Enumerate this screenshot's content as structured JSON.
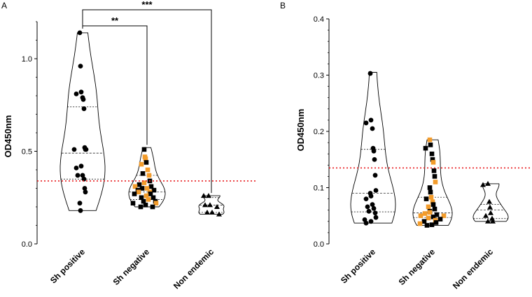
{
  "chart_data": [
    {
      "type": "violin",
      "panel": "A",
      "ylabel": "OD450nm",
      "ylim": [
        0,
        1.2
      ],
      "yticks": [
        0.0,
        0.5,
        1.0
      ],
      "ytick_labels": [
        "0.0",
        "0.5",
        "1.0"
      ],
      "categories": [
        "Sh positive",
        "Sh negative",
        "Non endemic"
      ],
      "cutoff": 0.34,
      "cutoff_color": "#e8191c",
      "groups": [
        {
          "name": "Sh positive",
          "marker": "circle",
          "range": [
            0.18,
            1.14
          ],
          "quartiles": [
            0.35,
            0.49,
            0.74
          ],
          "points": [
            {
              "v": 1.14,
              "c": "#000000"
            },
            {
              "v": 0.96,
              "c": "#000000"
            },
            {
              "v": 0.82,
              "c": "#000000"
            },
            {
              "v": 0.81,
              "c": "#000000"
            },
            {
              "v": 0.79,
              "c": "#000000"
            },
            {
              "v": 0.78,
              "c": "#000000"
            },
            {
              "v": 0.73,
              "c": "#000000"
            },
            {
              "v": 0.52,
              "c": "#000000"
            },
            {
              "v": 0.51,
              "c": "#000000"
            },
            {
              "v": 0.51,
              "c": "#000000"
            },
            {
              "v": 0.51,
              "c": "#000000"
            },
            {
              "v": 0.42,
              "c": "#000000"
            },
            {
              "v": 0.41,
              "c": "#000000"
            },
            {
              "v": 0.37,
              "c": "#000000"
            },
            {
              "v": 0.37,
              "c": "#000000"
            },
            {
              "v": 0.35,
              "c": "#000000"
            },
            {
              "v": 0.3,
              "c": "#000000"
            },
            {
              "v": 0.28,
              "c": "#000000"
            },
            {
              "v": 0.22,
              "c": "#000000"
            },
            {
              "v": 0.18,
              "c": "#000000"
            }
          ]
        },
        {
          "name": "Sh negative",
          "marker": "square",
          "range": [
            0.2,
            0.52
          ],
          "quartiles": [
            0.24,
            0.28,
            0.37
          ],
          "points": [
            {
              "v": 0.51,
              "c": "#000000"
            },
            {
              "v": 0.47,
              "c": "#f39c2b"
            },
            {
              "v": 0.46,
              "c": "#f39c2b"
            },
            {
              "v": 0.44,
              "c": "#000000"
            },
            {
              "v": 0.43,
              "c": "#f39c2b"
            },
            {
              "v": 0.4,
              "c": "#f39c2b"
            },
            {
              "v": 0.38,
              "c": "#000000"
            },
            {
              "v": 0.37,
              "c": "#f39c2b"
            },
            {
              "v": 0.34,
              "c": "#000000"
            },
            {
              "v": 0.33,
              "c": "#f39c2b"
            },
            {
              "v": 0.32,
              "c": "#000000"
            },
            {
              "v": 0.31,
              "c": "#000000"
            },
            {
              "v": 0.31,
              "c": "#f39c2b"
            },
            {
              "v": 0.3,
              "c": "#f39c2b"
            },
            {
              "v": 0.3,
              "c": "#000000"
            },
            {
              "v": 0.29,
              "c": "#000000"
            },
            {
              "v": 0.29,
              "c": "#000000"
            },
            {
              "v": 0.28,
              "c": "#f39c2b"
            },
            {
              "v": 0.28,
              "c": "#f39c2b"
            },
            {
              "v": 0.27,
              "c": "#000000"
            },
            {
              "v": 0.27,
              "c": "#000000"
            },
            {
              "v": 0.26,
              "c": "#f39c2b"
            },
            {
              "v": 0.25,
              "c": "#000000"
            },
            {
              "v": 0.25,
              "c": "#000000"
            },
            {
              "v": 0.24,
              "c": "#f39c2b"
            },
            {
              "v": 0.23,
              "c": "#000000"
            },
            {
              "v": 0.23,
              "c": "#000000"
            },
            {
              "v": 0.22,
              "c": "#000000"
            },
            {
              "v": 0.22,
              "c": "#f39c2b"
            },
            {
              "v": 0.21,
              "c": "#000000"
            },
            {
              "v": 0.2,
              "c": "#000000"
            },
            {
              "v": 0.2,
              "c": "#000000"
            }
          ]
        },
        {
          "name": "Non endemic",
          "marker": "triangle",
          "range": [
            0.16,
            0.26
          ],
          "quartiles": [
            0.17,
            0.21,
            0.25
          ],
          "points": [
            {
              "v": 0.26,
              "c": "#000000"
            },
            {
              "v": 0.26,
              "c": "#000000"
            },
            {
              "v": 0.21,
              "c": "#000000"
            },
            {
              "v": 0.21,
              "c": "#000000"
            },
            {
              "v": 0.2,
              "c": "#000000"
            },
            {
              "v": 0.17,
              "c": "#000000"
            },
            {
              "v": 0.17,
              "c": "#000000"
            },
            {
              "v": 0.16,
              "c": "#000000"
            }
          ]
        }
      ],
      "comparisons": [
        {
          "from": "Sh positive",
          "to": "Sh negative",
          "label": "**"
        },
        {
          "from": "Sh positive",
          "to": "Non endemic",
          "label": "***"
        }
      ]
    },
    {
      "type": "violin",
      "panel": "B",
      "ylabel": "OD450nm",
      "ylim": [
        0,
        0.4
      ],
      "yticks": [
        0.0,
        0.1,
        0.2,
        0.3,
        0.4
      ],
      "ytick_labels": [
        "0.0",
        "0.1",
        "0.2",
        "0.3",
        "0.4"
      ],
      "categories": [
        "Sh positive",
        "Sh negative",
        "Non endemic"
      ],
      "cutoff": 0.135,
      "cutoff_color": "#e8191c",
      "groups": [
        {
          "name": "Sh positive",
          "marker": "circle",
          "range": [
            0.037,
            0.305
          ],
          "quartiles": [
            0.057,
            0.09,
            0.168
          ],
          "points": [
            {
              "v": 0.303,
              "c": "#000000"
            },
            {
              "v": 0.22,
              "c": "#000000"
            },
            {
              "v": 0.215,
              "c": "#000000"
            },
            {
              "v": 0.205,
              "c": "#000000"
            },
            {
              "v": 0.17,
              "c": "#000000"
            },
            {
              "v": 0.165,
              "c": "#000000"
            },
            {
              "v": 0.15,
              "c": "#000000"
            },
            {
              "v": 0.122,
              "c": "#000000"
            },
            {
              "v": 0.095,
              "c": "#000000"
            },
            {
              "v": 0.09,
              "c": "#000000"
            },
            {
              "v": 0.085,
              "c": "#000000"
            },
            {
              "v": 0.08,
              "c": "#000000"
            },
            {
              "v": 0.07,
              "c": "#000000"
            },
            {
              "v": 0.066,
              "c": "#000000"
            },
            {
              "v": 0.063,
              "c": "#000000"
            },
            {
              "v": 0.058,
              "c": "#000000"
            },
            {
              "v": 0.055,
              "c": "#000000"
            },
            {
              "v": 0.047,
              "c": "#000000"
            },
            {
              "v": 0.043,
              "c": "#000000"
            },
            {
              "v": 0.04,
              "c": "#000000"
            },
            {
              "v": 0.037,
              "c": "#000000"
            }
          ]
        },
        {
          "name": "Sh negative",
          "marker": "square",
          "range": [
            0.033,
            0.185
          ],
          "quartiles": [
            0.047,
            0.055,
            0.083
          ],
          "points": [
            {
              "v": 0.185,
              "c": "#f39c2b"
            },
            {
              "v": 0.176,
              "c": "#000000"
            },
            {
              "v": 0.17,
              "c": "#000000"
            },
            {
              "v": 0.16,
              "c": "#000000"
            },
            {
              "v": 0.15,
              "c": "#000000"
            },
            {
              "v": 0.145,
              "c": "#f39c2b"
            },
            {
              "v": 0.13,
              "c": "#000000"
            },
            {
              "v": 0.12,
              "c": "#000000"
            },
            {
              "v": 0.11,
              "c": "#f39c2b"
            },
            {
              "v": 0.1,
              "c": "#000000"
            },
            {
              "v": 0.092,
              "c": "#000000"
            },
            {
              "v": 0.083,
              "c": "#f39c2b"
            },
            {
              "v": 0.08,
              "c": "#000000"
            },
            {
              "v": 0.075,
              "c": "#f39c2b"
            },
            {
              "v": 0.07,
              "c": "#000000"
            },
            {
              "v": 0.066,
              "c": "#f39c2b"
            },
            {
              "v": 0.062,
              "c": "#000000"
            },
            {
              "v": 0.058,
              "c": "#000000"
            },
            {
              "v": 0.056,
              "c": "#f39c2b"
            },
            {
              "v": 0.054,
              "c": "#f39c2b"
            },
            {
              "v": 0.052,
              "c": "#000000"
            },
            {
              "v": 0.05,
              "c": "#f39c2b"
            },
            {
              "v": 0.05,
              "c": "#f39c2b"
            },
            {
              "v": 0.048,
              "c": "#000000"
            },
            {
              "v": 0.046,
              "c": "#f39c2b"
            },
            {
              "v": 0.044,
              "c": "#000000"
            },
            {
              "v": 0.042,
              "c": "#f39c2b"
            },
            {
              "v": 0.04,
              "c": "#000000"
            },
            {
              "v": 0.038,
              "c": "#000000"
            },
            {
              "v": 0.036,
              "c": "#f39c2b"
            },
            {
              "v": 0.034,
              "c": "#000000"
            },
            {
              "v": 0.033,
              "c": "#000000"
            }
          ]
        },
        {
          "name": "Non endemic",
          "marker": "triangle",
          "range": [
            0.04,
            0.107
          ],
          "quartiles": [
            0.045,
            0.06,
            0.07
          ],
          "points": [
            {
              "v": 0.107,
              "c": "#000000"
            },
            {
              "v": 0.105,
              "c": "#000000"
            },
            {
              "v": 0.075,
              "c": "#000000"
            },
            {
              "v": 0.065,
              "c": "#000000"
            },
            {
              "v": 0.055,
              "c": "#000000"
            },
            {
              "v": 0.05,
              "c": "#000000"
            },
            {
              "v": 0.045,
              "c": "#000000"
            },
            {
              "v": 0.04,
              "c": "#000000"
            },
            {
              "v": 0.04,
              "c": "#000000"
            }
          ]
        }
      ],
      "comparisons": []
    }
  ]
}
